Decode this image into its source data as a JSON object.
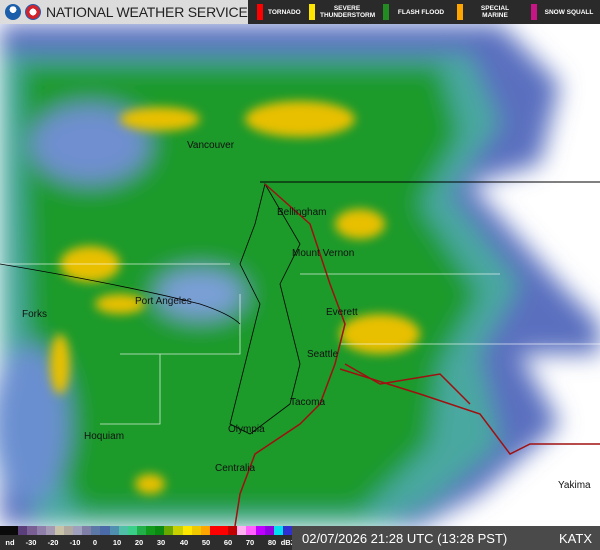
{
  "header": {
    "title": "NATIONAL WEATHER SERVICE",
    "logos": [
      "noaa-logo",
      "nws-logo"
    ]
  },
  "warnings": [
    {
      "label": "TORNADO",
      "color": "#ff0000"
    },
    {
      "label": "SEVERE THUNDERSTORM",
      "color": "#ffe600"
    },
    {
      "label": "FLASH FLOOD",
      "color": "#228b22"
    },
    {
      "label": "SPECIAL MARINE",
      "color": "#ffa500"
    },
    {
      "label": "SNOW SQUALL",
      "color": "#c71585"
    }
  ],
  "cities": [
    "Vancouver",
    "Bellingham",
    "Mount Vernon",
    "Port Angeles",
    "Forks",
    "Everett",
    "Seattle",
    "Tacoma",
    "Olympia",
    "Hoquiam",
    "Centralia",
    "Yakima"
  ],
  "legend": {
    "ticks": [
      "nd",
      "-30",
      "-20",
      "-10",
      "0",
      "10",
      "20",
      "30",
      "40",
      "50",
      "60",
      "70",
      "80",
      "dBZ"
    ],
    "colors": [
      "#0a0a0a",
      "#0a0a0a",
      "#5a3f7a",
      "#7a5f94",
      "#8f7faa",
      "#a49ab4",
      "#c8c3a8",
      "#b0aaa0",
      "#9ea0bd",
      "#7f7fa8",
      "#5c78a6",
      "#4a6aa8",
      "#4f8fb0",
      "#4fbfa8",
      "#3ad08a",
      "#22b04a",
      "#129a1c",
      "#0a8a10",
      "#6aa800",
      "#c8d000",
      "#ffe600",
      "#f0c800",
      "#ffa500",
      "#ff0000",
      "#ff0000",
      "#c00000",
      "#ffb0f0",
      "#ff60ff",
      "#c000ff",
      "#9000e0",
      "#00e0f0",
      "#3030d0"
    ]
  },
  "timestamp": "02/07/2026 21:28 UTC (13:28 PST)",
  "station": "KATX"
}
